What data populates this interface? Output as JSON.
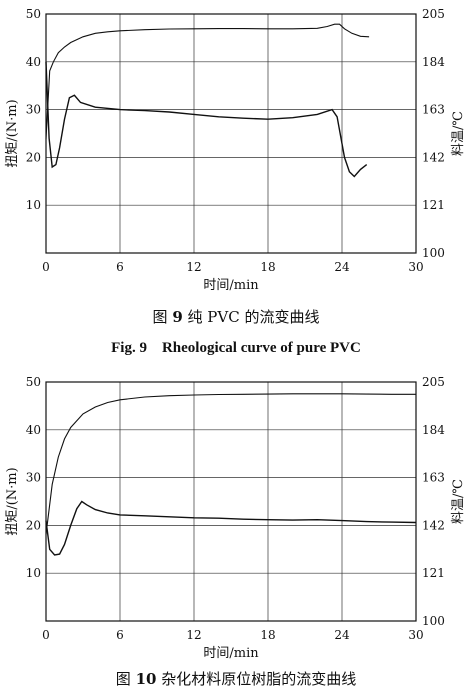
{
  "chart_data": [
    {
      "type": "line",
      "xlabel": "时间/min",
      "ylabel": "扭矩/(N·m)",
      "y2label": "料温/℃",
      "xticks": [
        "0",
        "6",
        "12",
        "18",
        "24",
        "30"
      ],
      "yticks": [
        "10",
        "20",
        "30",
        "40",
        "50"
      ],
      "y2ticks": [
        "100",
        "121",
        "142",
        "163",
        "184",
        "205"
      ],
      "xlim": [
        0,
        30
      ],
      "ylim": [
        0,
        50
      ],
      "y2lim": [
        100,
        205
      ],
      "grid": true,
      "series": [
        {
          "axis": "right",
          "x": [
            0,
            0.3,
            0.6,
            1,
            1.5,
            2,
            3,
            4,
            5,
            6,
            8,
            10,
            12,
            14,
            16,
            18,
            20,
            22,
            22.8,
            23.4,
            23.8,
            24.2,
            24.8,
            25.5,
            26.2
          ],
          "y": [
            150,
            180,
            184,
            188,
            190.5,
            192.5,
            195,
            196.5,
            197.2,
            197.6,
            198.1,
            198.4,
            198.5,
            198.6,
            198.6,
            198.5,
            198.5,
            198.7,
            199.5,
            200.5,
            200.5,
            198.5,
            196.5,
            195.2,
            195
          ]
        },
        {
          "axis": "left",
          "x": [
            0,
            0.25,
            0.5,
            0.8,
            1.1,
            1.5,
            1.9,
            2.3,
            2.8,
            4,
            6,
            8,
            10,
            12,
            14,
            16,
            18,
            20,
            22,
            23.2,
            23.6,
            24.2,
            24.6,
            25,
            25.5,
            26
          ],
          "y": [
            40,
            24,
            18,
            18.5,
            22,
            28,
            32.5,
            33,
            31.5,
            30.5,
            30,
            29.8,
            29.5,
            29,
            28.5,
            28.2,
            28,
            28.3,
            29,
            30,
            28.5,
            20,
            17,
            16,
            17.5,
            18.5
          ]
        }
      ]
    },
    {
      "type": "line",
      "xlabel": "时间/min",
      "ylabel": "扭矩/(N·m)",
      "y2label": "料温/℃",
      "xticks": [
        "0",
        "6",
        "12",
        "18",
        "24",
        "30"
      ],
      "yticks": [
        "10",
        "20",
        "30",
        "40",
        "50"
      ],
      "y2ticks": [
        "100",
        "121",
        "142",
        "163",
        "184",
        "205"
      ],
      "xlim": [
        0,
        30
      ],
      "ylim": [
        0,
        50
      ],
      "y2lim": [
        100,
        205
      ],
      "grid": true,
      "series": [
        {
          "axis": "right",
          "x": [
            0,
            0.5,
            1,
            1.5,
            2,
            3,
            4,
            5,
            6,
            8,
            10,
            12,
            14,
            16,
            18,
            20,
            22,
            24,
            26,
            28,
            30
          ],
          "y": [
            138,
            160,
            172,
            180,
            185,
            191,
            194,
            196,
            197.2,
            198.4,
            199,
            199.3,
            199.5,
            199.6,
            199.7,
            199.8,
            199.8,
            199.8,
            199.7,
            199.6,
            199.6
          ]
        },
        {
          "axis": "left",
          "x": [
            0,
            0.3,
            0.7,
            1.1,
            1.5,
            2,
            2.5,
            2.9,
            3.3,
            4,
            5,
            6,
            8,
            10,
            12,
            14,
            16,
            18,
            20,
            22,
            24,
            26,
            28,
            30
          ],
          "y": [
            21,
            15,
            13.8,
            14,
            16,
            20,
            23.5,
            25,
            24.3,
            23.3,
            22.6,
            22.2,
            22,
            21.8,
            21.6,
            21.5,
            21.3,
            21.2,
            21.1,
            21.2,
            21,
            20.8,
            20.7,
            20.6
          ]
        }
      ]
    }
  ],
  "captions": {
    "fig9_cn": "图",
    "fig9_cn_num": "9",
    "fig9_cn_text": "纯 PVC 的流变曲线",
    "fig9_en": "Fig. 9　Rheological curve of pure PVC",
    "fig10_cn": "图",
    "fig10_cn_num": "10",
    "fig10_cn_text": "杂化材料原位树脂的流变曲线"
  }
}
